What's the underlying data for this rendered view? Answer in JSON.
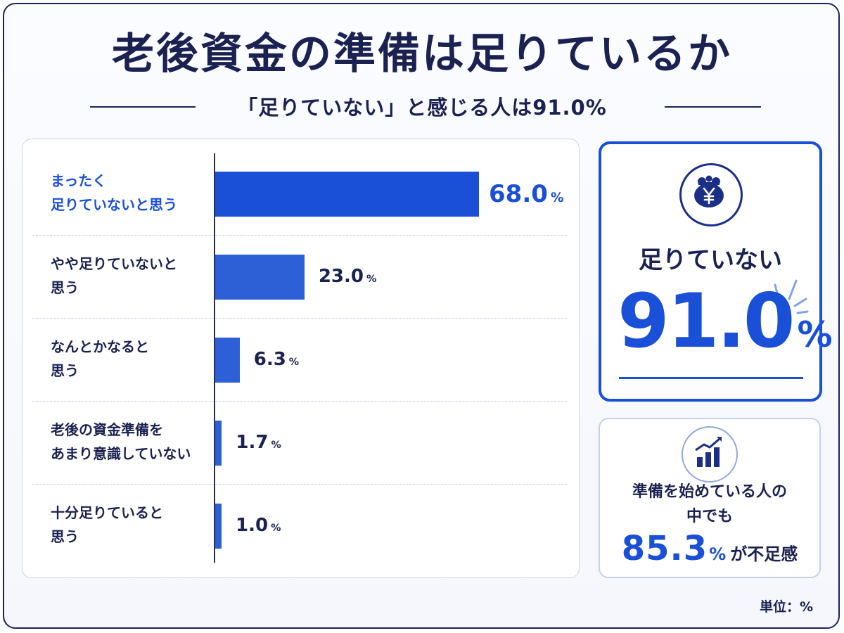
{
  "title": "老後資金の準備は足りているか",
  "subtitle": "「足りていない」と感じる人は91.0%",
  "unit_note": "単位：%",
  "colors": {
    "primary_blue": "#1a4fd8",
    "bar_blue": "#2d5fd6",
    "navy": "#1b2150"
  },
  "chart_data": {
    "type": "bar",
    "orientation": "horizontal",
    "categories": [
      "まったく\n足りていないと思う",
      "やや足りていないと\n思う",
      "なんとかなると\n思う",
      "老後の資金準備を\nあまり意識していない",
      "十分足りていると\n思う"
    ],
    "values": [
      68.0,
      23.0,
      6.3,
      1.7,
      1.0
    ],
    "value_labels": [
      "68.0",
      "23.0",
      "6.3",
      "1.7",
      "1.0"
    ],
    "value_suffix": "%",
    "xlim": [
      0,
      100
    ],
    "grid": false,
    "highlight_index": 0
  },
  "summary_card": {
    "icon": "yen-purse-icon",
    "label": "足りていない",
    "value": "91.0",
    "percent_sign": "%"
  },
  "sub_card": {
    "icon": "growth-chart-icon",
    "text": "準備を始めている人の\n中でも",
    "value": "85.3",
    "percent_sign": "%",
    "suffix": "が不足感"
  }
}
